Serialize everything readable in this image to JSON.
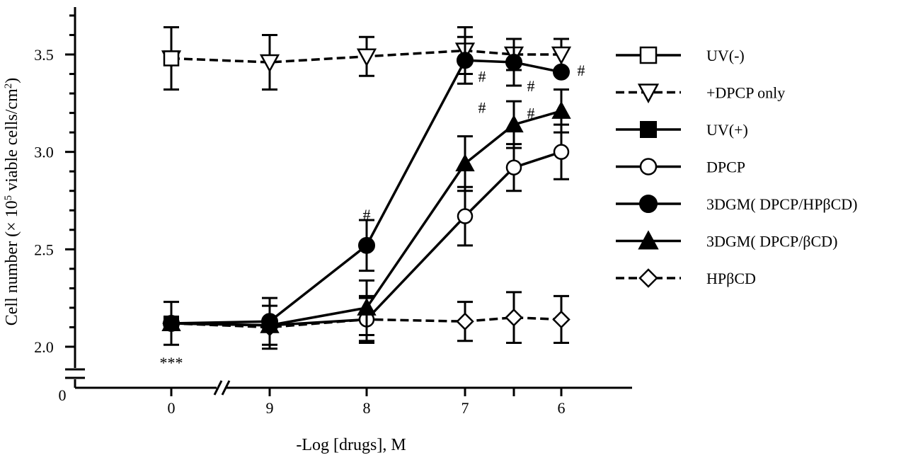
{
  "chart_data": {
    "type": "line",
    "xlabel": "-Log [drugs], M",
    "ylabel_main": "Cell number (",
    "ylabel_times": "×",
    "ylabel_ten": " 10",
    "ylabel_sup": "5",
    "ylabel_tail": " viable cells/cm",
    "ylabel_sup2": "2",
    "ylabel_close": ")",
    "x_categories": [
      "0",
      "9",
      "8",
      "7",
      "6"
    ],
    "x_positions": [
      0,
      9,
      8,
      7,
      6.5,
      6
    ],
    "y_ticks": [
      "2.0",
      "2.5",
      "3.0",
      "3.5"
    ],
    "y_zero_label": "0",
    "ylim": [
      2.0,
      3.7
    ],
    "y_break": true,
    "x_break": true,
    "series": [
      {
        "name": "UV(-)",
        "marker": "square-open",
        "dash": false,
        "points": [
          {
            "x": "0",
            "y": 3.48,
            "err": 0.16
          }
        ]
      },
      {
        "name": "+DPCP only",
        "marker": "triangle-down-open",
        "dash": true,
        "points": [
          {
            "x": "0",
            "y": 3.48
          },
          {
            "x": "9",
            "y": 3.46,
            "err": 0.14
          },
          {
            "x": "8",
            "y": 3.49,
            "err": 0.1
          },
          {
            "x": "7",
            "y": 3.52,
            "err": 0.12
          },
          {
            "x": "6.5",
            "y": 3.5,
            "err": 0.08
          },
          {
            "x": "6",
            "y": 3.5,
            "err": 0.08
          }
        ]
      },
      {
        "name": "UV(+)",
        "marker": "square-filled",
        "dash": false,
        "points": [
          {
            "x": "0",
            "y": 2.12,
            "err": 0.11
          }
        ]
      },
      {
        "name": "DPCP",
        "marker": "circle-open",
        "dash": false,
        "points": [
          {
            "x": "0",
            "y": 2.12
          },
          {
            "x": "9",
            "y": 2.11
          },
          {
            "x": "8",
            "y": 2.14,
            "err": 0.11
          },
          {
            "x": "7",
            "y": 2.67,
            "err": 0.15
          },
          {
            "x": "6.5",
            "y": 2.92,
            "err": 0.12
          },
          {
            "x": "6",
            "y": 3.0,
            "err": 0.14
          }
        ]
      },
      {
        "name": "3DGM( DPCP/HPβCD)",
        "marker": "circle-filled",
        "dash": false,
        "points": [
          {
            "x": "0",
            "y": 2.12
          },
          {
            "x": "9",
            "y": 2.13,
            "err": 0.12
          },
          {
            "x": "8",
            "y": 2.52,
            "err": 0.13
          },
          {
            "x": "7",
            "y": 3.47,
            "err": 0.12
          },
          {
            "x": "6.5",
            "y": 3.46,
            "err": 0.12
          },
          {
            "x": "6",
            "y": 3.41
          }
        ]
      },
      {
        "name": "3DGM( DPCP/βCD)",
        "marker": "triangle-up-filled",
        "dash": false,
        "points": [
          {
            "x": "0",
            "y": 2.12
          },
          {
            "x": "9",
            "y": 2.11
          },
          {
            "x": "8",
            "y": 2.2,
            "err": 0.14
          },
          {
            "x": "7",
            "y": 2.94,
            "err": 0.14
          },
          {
            "x": "6.5",
            "y": 3.14,
            "err": 0.12
          },
          {
            "x": "6",
            "y": 3.21,
            "err": 0.11
          }
        ]
      },
      {
        "name": "HPβCD",
        "marker": "diamond-open",
        "dash": true,
        "points": [
          {
            "x": "0",
            "y": 2.12
          },
          {
            "x": "9",
            "y": 2.1,
            "err": 0.11
          },
          {
            "x": "8",
            "y": 2.14,
            "err": 0.12
          },
          {
            "x": "7",
            "y": 2.13,
            "err": 0.1
          },
          {
            "x": "6.5",
            "y": 2.15,
            "err": 0.13
          },
          {
            "x": "6",
            "y": 2.14,
            "err": 0.12
          }
        ]
      }
    ],
    "annotations": [
      {
        "text": "***",
        "x": "0",
        "y": 1.92
      },
      {
        "text": "#",
        "x": "8",
        "y": 2.68
      },
      {
        "text": "#",
        "x": "7",
        "y": 3.39,
        "dx": 24
      },
      {
        "text": "#",
        "x": "7",
        "y": 3.23,
        "dx": 24
      },
      {
        "text": "#",
        "x": "6.5",
        "y": 3.34,
        "dx": 24
      },
      {
        "text": "#",
        "x": "6.5",
        "y": 3.2,
        "dx": 24
      },
      {
        "text": "#",
        "x": "6",
        "y": 3.42,
        "dx": 28
      }
    ],
    "legend_position": "right"
  }
}
